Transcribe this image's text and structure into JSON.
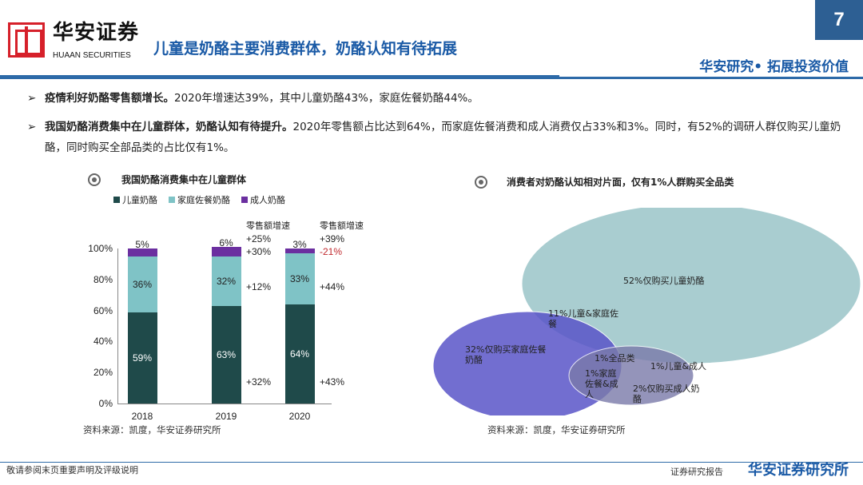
{
  "header": {
    "brand_cn": "华安证券",
    "brand_en": "HUAAN SECURITIES",
    "title": "儿童是奶酪主要消费群体，奶酪认知有待拓展",
    "page_number": "7",
    "slogan": "华安研究• 拓展投资价值"
  },
  "bullets": [
    {
      "bold": "疫情利好奶酪零售额增长。",
      "text": "2020年增速达39%，其中儿童奶酪43%，家庭佐餐奶酪44%。"
    },
    {
      "bold": "我国奶酪消费集中在儿童群体，奶酪认知有待提升。",
      "text": "2020年零售额占比达到64%，而家庭佐餐消费和成人消费仅占33%和3%。同时，有52%的调研人群仅购买儿童奶酪，同时购买全部品类的占比仅有1%。"
    }
  ],
  "chart_data": {
    "type": "bar",
    "stacked": true,
    "title": "我国奶酪消费集中在儿童群体",
    "categories": [
      "2018",
      "2019",
      "2020"
    ],
    "series": [
      {
        "name": "儿童奶酪",
        "color": "#1f4a4a",
        "values": [
          59,
          63,
          64
        ],
        "labels": [
          "59%",
          "63%",
          "64%"
        ]
      },
      {
        "name": "家庭佐餐奶酪",
        "color": "#7fc3c6",
        "values": [
          36,
          32,
          33
        ],
        "labels": [
          "36%",
          "32%",
          "33%"
        ]
      },
      {
        "name": "成人奶酪",
        "color": "#6b2fa0",
        "values": [
          5,
          6,
          3
        ],
        "labels": [
          "5%",
          "6%",
          "3%"
        ]
      }
    ],
    "yticks": [
      "0%",
      "20%",
      "40%",
      "60%",
      "80%",
      "100%"
    ],
    "ylim": [
      0,
      100
    ],
    "growth_header": "零售额增速",
    "growth": [
      {
        "after": "2019",
        "total": "+25%",
        "adult": "+30%",
        "family": "+12%",
        "kids": "+32%"
      },
      {
        "after": "2020",
        "total": "+39%",
        "adult": "-21%",
        "family": "+44%",
        "kids": "+43%"
      }
    ],
    "negative_color": "#c0282d",
    "legend_placement": "top-left"
  },
  "venn": {
    "title": "消费者对奶酪认知相对片面，仅有1%人群购买全品类",
    "labels": [
      "52%仅购买儿童奶酪",
      "11%儿童&家庭佐餐",
      "32%仅购买家庭佐餐奶酪",
      "1%全品类",
      "1%儿童&成人",
      "1%家庭佐餐&成人",
      "2%仅购买成人奶酪"
    ]
  },
  "source": "资料来源：凯度，华安证券研究所",
  "footer": {
    "left": "敬请参阅末页重要声明及评级说明",
    "report": "证券研究报告",
    "company": "华安证券研究所"
  }
}
